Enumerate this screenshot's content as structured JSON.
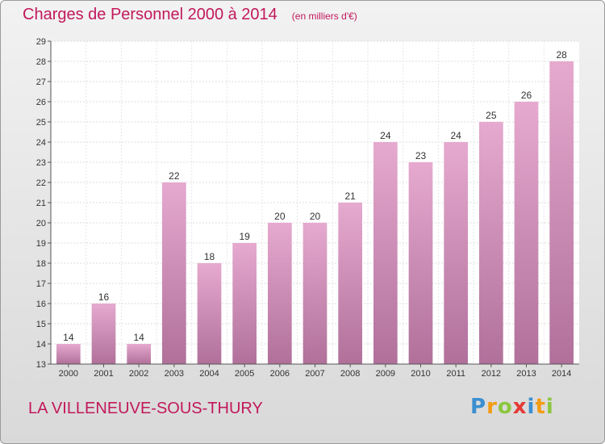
{
  "chart_data": {
    "type": "bar",
    "title": "Charges de Personnel 2000 à 2014",
    "subtitle": "(en milliers d'€)",
    "categories": [
      "2000",
      "2001",
      "2002",
      "2003",
      "2004",
      "2005",
      "2006",
      "2007",
      "2008",
      "2009",
      "2010",
      "2011",
      "2012",
      "2013",
      "2014"
    ],
    "values": [
      14,
      16,
      14,
      22,
      18,
      19,
      20,
      20,
      21,
      24,
      23,
      24,
      25,
      26,
      28
    ],
    "ylim": [
      13,
      29
    ],
    "yticks": [
      13,
      14,
      15,
      16,
      17,
      18,
      19,
      20,
      21,
      22,
      23,
      24,
      25,
      26,
      27,
      28,
      29
    ],
    "grid": true,
    "bar_color_top": "#e6a9cf",
    "bar_color_bottom": "#b0709a"
  },
  "footer": {
    "place": "LA VILLENEUVE-SOUS-THURY",
    "brand_letters": [
      {
        "char": "P",
        "color": "#3a8fd1"
      },
      {
        "char": "r",
        "color": "#f39c12"
      },
      {
        "char": "o",
        "color": "#8cc63f"
      },
      {
        "char": "x",
        "color": "#e53935"
      },
      {
        "char": "i",
        "color": "#3a8fd1"
      },
      {
        "char": "t",
        "color": "#f39c12"
      },
      {
        "char": "i",
        "color": "#8cc63f"
      }
    ]
  }
}
